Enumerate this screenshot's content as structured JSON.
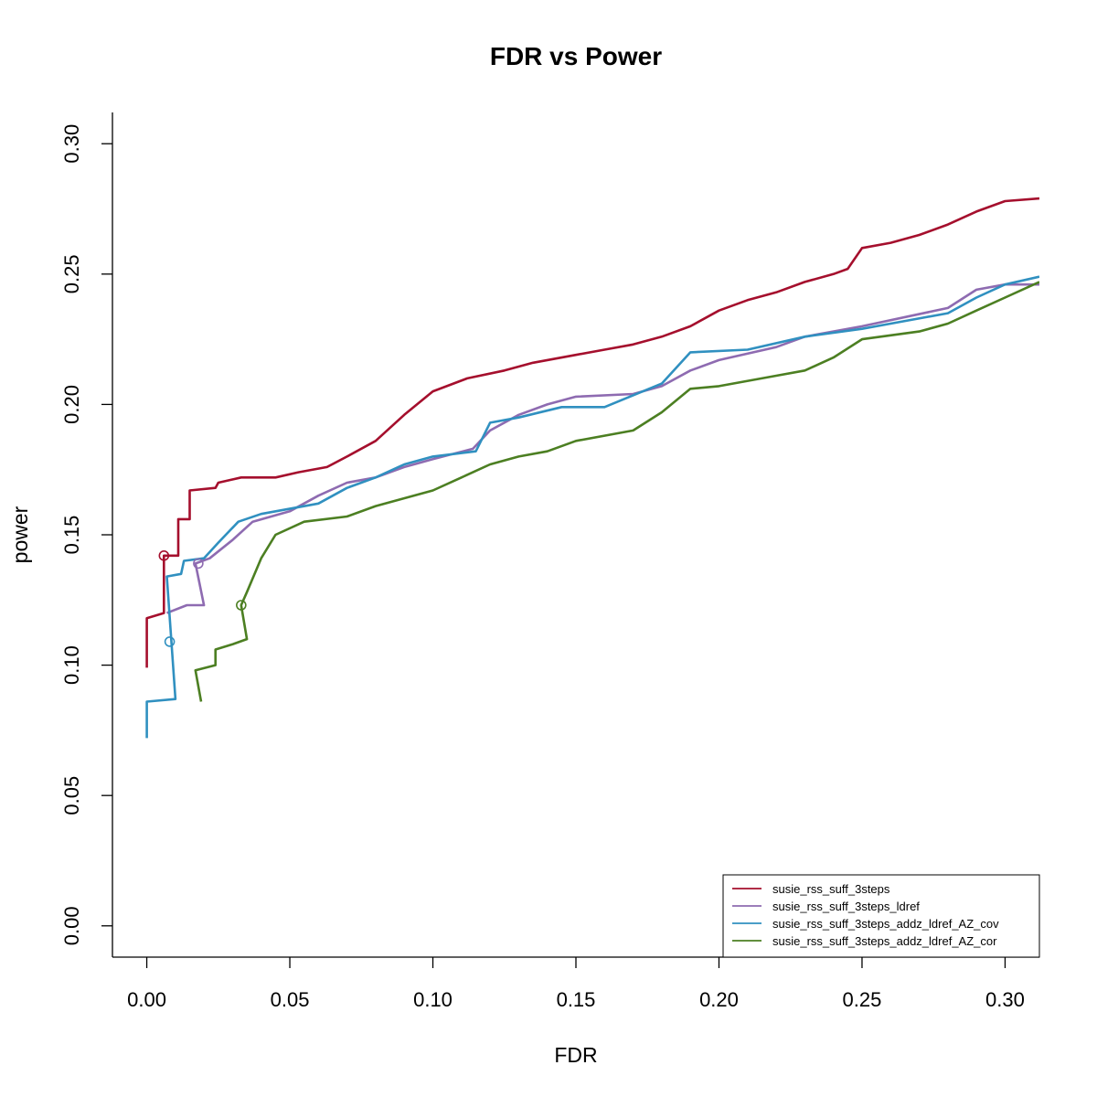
{
  "chart_data": {
    "type": "line",
    "title": "FDR vs Power",
    "xlabel": "FDR",
    "ylabel": "power",
    "xlim": [
      -0.012,
      0.312
    ],
    "ylim": [
      -0.012,
      0.312
    ],
    "xticks": [
      "0.00",
      "0.05",
      "0.10",
      "0.15",
      "0.20",
      "0.25",
      "0.30"
    ],
    "xtick_values": [
      0.0,
      0.05,
      0.1,
      0.15,
      0.2,
      0.25,
      0.3
    ],
    "yticks": [
      "0.00",
      "0.05",
      "0.10",
      "0.15",
      "0.20",
      "0.25",
      "0.30"
    ],
    "ytick_values": [
      0.0,
      0.05,
      0.1,
      0.15,
      0.2,
      0.25,
      0.3
    ],
    "legend_position": "bottom-right",
    "series": [
      {
        "name": "susie_rss_suff_3steps",
        "color": "#a50f2d",
        "marker": {
          "x": 0.006,
          "y": 0.142
        },
        "points": [
          [
            0.0,
            0.099
          ],
          [
            0.0,
            0.118
          ],
          [
            0.006,
            0.12
          ],
          [
            0.006,
            0.142
          ],
          [
            0.011,
            0.142
          ],
          [
            0.011,
            0.156
          ],
          [
            0.015,
            0.156
          ],
          [
            0.015,
            0.167
          ],
          [
            0.024,
            0.168
          ],
          [
            0.025,
            0.17
          ],
          [
            0.033,
            0.172
          ],
          [
            0.045,
            0.172
          ],
          [
            0.053,
            0.174
          ],
          [
            0.063,
            0.176
          ],
          [
            0.07,
            0.18
          ],
          [
            0.08,
            0.186
          ],
          [
            0.09,
            0.196
          ],
          [
            0.1,
            0.205
          ],
          [
            0.112,
            0.21
          ],
          [
            0.125,
            0.213
          ],
          [
            0.135,
            0.216
          ],
          [
            0.15,
            0.219
          ],
          [
            0.16,
            0.221
          ],
          [
            0.17,
            0.223
          ],
          [
            0.18,
            0.226
          ],
          [
            0.19,
            0.23
          ],
          [
            0.2,
            0.236
          ],
          [
            0.21,
            0.24
          ],
          [
            0.22,
            0.243
          ],
          [
            0.23,
            0.247
          ],
          [
            0.24,
            0.25
          ],
          [
            0.245,
            0.252
          ],
          [
            0.25,
            0.26
          ],
          [
            0.26,
            0.262
          ],
          [
            0.27,
            0.265
          ],
          [
            0.28,
            0.269
          ],
          [
            0.29,
            0.274
          ],
          [
            0.3,
            0.278
          ],
          [
            0.312,
            0.279
          ]
        ]
      },
      {
        "name": "susie_rss_suff_3steps_ldref",
        "color": "#8e6bb1",
        "marker": {
          "x": 0.018,
          "y": 0.139
        },
        "points": [
          [
            0.007,
            0.12
          ],
          [
            0.014,
            0.123
          ],
          [
            0.02,
            0.123
          ],
          [
            0.017,
            0.139
          ],
          [
            0.022,
            0.141
          ],
          [
            0.03,
            0.148
          ],
          [
            0.037,
            0.155
          ],
          [
            0.05,
            0.159
          ],
          [
            0.06,
            0.165
          ],
          [
            0.07,
            0.17
          ],
          [
            0.08,
            0.172
          ],
          [
            0.09,
            0.176
          ],
          [
            0.1,
            0.179
          ],
          [
            0.114,
            0.183
          ],
          [
            0.12,
            0.19
          ],
          [
            0.13,
            0.196
          ],
          [
            0.14,
            0.2
          ],
          [
            0.15,
            0.203
          ],
          [
            0.17,
            0.204
          ],
          [
            0.18,
            0.207
          ],
          [
            0.19,
            0.213
          ],
          [
            0.2,
            0.217
          ],
          [
            0.22,
            0.222
          ],
          [
            0.23,
            0.226
          ],
          [
            0.25,
            0.23
          ],
          [
            0.28,
            0.237
          ],
          [
            0.29,
            0.244
          ],
          [
            0.3,
            0.246
          ],
          [
            0.312,
            0.246
          ]
        ]
      },
      {
        "name": "susie_rss_suff_3steps_addz_ldref_AZ_cov",
        "color": "#3090c0",
        "marker": {
          "x": 0.008,
          "y": 0.109
        },
        "points": [
          [
            0.0,
            0.072
          ],
          [
            0.0,
            0.086
          ],
          [
            0.01,
            0.087
          ],
          [
            0.007,
            0.134
          ],
          [
            0.012,
            0.135
          ],
          [
            0.013,
            0.14
          ],
          [
            0.02,
            0.141
          ],
          [
            0.025,
            0.147
          ],
          [
            0.032,
            0.155
          ],
          [
            0.04,
            0.158
          ],
          [
            0.06,
            0.162
          ],
          [
            0.07,
            0.168
          ],
          [
            0.08,
            0.172
          ],
          [
            0.09,
            0.177
          ],
          [
            0.1,
            0.18
          ],
          [
            0.115,
            0.182
          ],
          [
            0.12,
            0.193
          ],
          [
            0.13,
            0.195
          ],
          [
            0.145,
            0.199
          ],
          [
            0.16,
            0.199
          ],
          [
            0.18,
            0.208
          ],
          [
            0.19,
            0.22
          ],
          [
            0.21,
            0.221
          ],
          [
            0.23,
            0.226
          ],
          [
            0.25,
            0.229
          ],
          [
            0.26,
            0.231
          ],
          [
            0.28,
            0.235
          ],
          [
            0.29,
            0.241
          ],
          [
            0.3,
            0.246
          ],
          [
            0.312,
            0.249
          ]
        ]
      },
      {
        "name": "susie_rss_suff_3steps_addz_ldref_AZ_cor",
        "color": "#4c7f22",
        "marker": {
          "x": 0.033,
          "y": 0.123
        },
        "points": [
          [
            0.019,
            0.086
          ],
          [
            0.017,
            0.098
          ],
          [
            0.024,
            0.1
          ],
          [
            0.024,
            0.106
          ],
          [
            0.03,
            0.108
          ],
          [
            0.035,
            0.11
          ],
          [
            0.033,
            0.123
          ],
          [
            0.035,
            0.128
          ],
          [
            0.04,
            0.141
          ],
          [
            0.045,
            0.15
          ],
          [
            0.055,
            0.155
          ],
          [
            0.07,
            0.157
          ],
          [
            0.08,
            0.161
          ],
          [
            0.1,
            0.167
          ],
          [
            0.11,
            0.172
          ],
          [
            0.12,
            0.177
          ],
          [
            0.13,
            0.18
          ],
          [
            0.14,
            0.182
          ],
          [
            0.15,
            0.186
          ],
          [
            0.17,
            0.19
          ],
          [
            0.18,
            0.197
          ],
          [
            0.19,
            0.206
          ],
          [
            0.2,
            0.207
          ],
          [
            0.22,
            0.211
          ],
          [
            0.23,
            0.213
          ],
          [
            0.24,
            0.218
          ],
          [
            0.25,
            0.225
          ],
          [
            0.27,
            0.228
          ],
          [
            0.28,
            0.231
          ],
          [
            0.29,
            0.236
          ],
          [
            0.3,
            0.241
          ],
          [
            0.312,
            0.247
          ]
        ]
      }
    ]
  }
}
